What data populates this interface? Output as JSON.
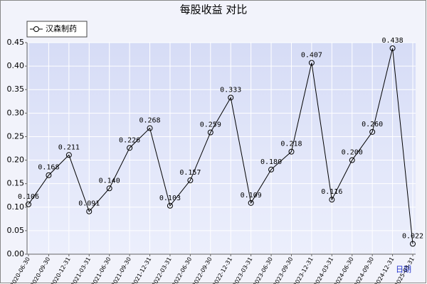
{
  "chart_data": {
    "type": "line",
    "title": "每股收益 对比",
    "x_label": "日期",
    "categories": [
      "2020-06-30",
      "2020-09-30",
      "2020-12-31",
      "2021-03-31",
      "2021-06-30",
      "2021-09-30",
      "2021-12-31",
      "2022-03-31",
      "2022-06-30",
      "2022-09-30",
      "2022-12-31",
      "2023-03-31",
      "2023-06-30",
      "2023-09-30",
      "2023-12-31",
      "2024-03-31",
      "2024-06-30",
      "2024-09-30",
      "2024-12-31",
      "2025-03-31"
    ],
    "series": [
      {
        "name": "汉森制药",
        "color": "#000000",
        "values": [
          0.106,
          0.168,
          0.211,
          0.091,
          0.14,
          0.226,
          0.268,
          0.103,
          0.157,
          0.259,
          0.333,
          0.109,
          0.18,
          0.218,
          0.407,
          0.116,
          0.2,
          0.26,
          0.438,
          0.022
        ],
        "value_labels": [
          "0.106",
          "0.168",
          "0.211",
          "0.091",
          "0.140",
          "0.226",
          "0.268",
          "0.103",
          "0.157",
          "0.259",
          "0.333",
          "0.109",
          "0.180",
          "0.218",
          "0.407",
          "0.116",
          "0.200",
          "0.260",
          "0.438",
          "0.022"
        ]
      }
    ],
    "ylim": [
      0,
      0.45
    ],
    "yticks": [
      {
        "value": 0,
        "label": "0.00"
      },
      {
        "value": 0.05,
        "label": "0.05"
      },
      {
        "value": 0.1,
        "label": "0.10"
      },
      {
        "value": 0.15,
        "label": "0.15"
      },
      {
        "value": 0.2,
        "label": "0.20"
      },
      {
        "value": 0.25,
        "label": "0.25"
      },
      {
        "value": 0.3,
        "label": "0.30"
      },
      {
        "value": 0.35,
        "label": "0.35"
      },
      {
        "value": 0.4,
        "label": "0.40"
      },
      {
        "value": 0.45,
        "label": "0.45"
      }
    ],
    "grid": true,
    "legend": "top-left"
  }
}
